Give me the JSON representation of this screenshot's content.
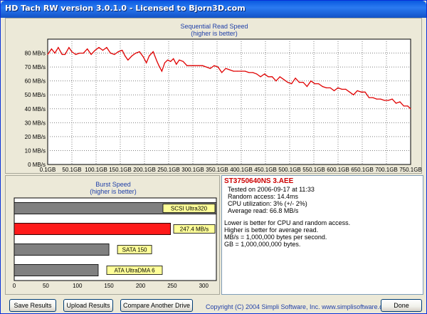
{
  "window": {
    "title": "HD Tach RW version 3.0.1.0 - Licensed to Bjorn3D.com"
  },
  "sequential": {
    "title_line1": "Sequential Read Speed",
    "title_line2": "(higher is better)"
  },
  "burst": {
    "title_line1": "Burst Speed",
    "title_line2": "(higher is better)"
  },
  "info": {
    "drive_name": "ST3750640NS 3.AEE",
    "tested_on": "Tested on 2006-09-17 at 11:33",
    "random_access": "Random access: 14.4ms",
    "cpu_utilization": "CPU utilization: 3% (+/- 2%)",
    "average_read": "Average read: 66.8 MB/s",
    "note1": "Lower is better for CPU and random access.",
    "note2": "Higher is better for average read.",
    "note3": "MB/s = 1,000,000 bytes per second.",
    "note4": "GB = 1,000,000,000 bytes."
  },
  "buttons": {
    "save": "Save Results",
    "upload": "Upload Results",
    "compare": "Compare Another Drive",
    "done": "Done"
  },
  "footer": {
    "copyright": "Copyright (C) 2004 Simpli Software, Inc. www.simplisoftware.com"
  },
  "colors": {
    "line": "#e00000",
    "highlight_bar": "#ff1a1a",
    "reference_bar": "#808080",
    "label_bg": "#ffff99",
    "title_blue": "#1f3fa8",
    "drive_name_red": "#cc0000"
  },
  "chart_data": [
    {
      "type": "line",
      "title": "Sequential Read Speed",
      "subtitle": "(higher is better)",
      "xlabels": [
        "0.1GB",
        "50.1GB",
        "100.1GB",
        "150.1GB",
        "200.1GB",
        "250.1GB",
        "300.1GB",
        "350.1GB",
        "400.1GB",
        "450.1GB",
        "500.1GB",
        "550.1GB",
        "600.1GB",
        "650.1GB",
        "700.1GB",
        "750.1GB"
      ],
      "yticks": [
        "0 MB/s",
        "10 MB/s",
        "20 MB/s",
        "30 MB/s",
        "40 MB/s",
        "50 MB/s",
        "60 MB/s",
        "70 MB/s",
        "80 MB/s"
      ],
      "ylim": [
        0,
        90
      ],
      "xlim": [
        0.1,
        750.1
      ],
      "grid": true,
      "series": [
        {
          "x": [
            0.1,
            8,
            15,
            22,
            30,
            36,
            44,
            50,
            58,
            66,
            74,
            82,
            90,
            98,
            106,
            114,
            122,
            130,
            138,
            146,
            154,
            160,
            166,
            174,
            182,
            190,
            198,
            204,
            210,
            218,
            226,
            230,
            236,
            242,
            248,
            254,
            260,
            266,
            272,
            280,
            288,
            296,
            304,
            312,
            320,
            328,
            336,
            344,
            352,
            360,
            368,
            376,
            384,
            392,
            400,
            408,
            416,
            424,
            432,
            440,
            448,
            456,
            464,
            472,
            480,
            488,
            496,
            504,
            512,
            520,
            528,
            536,
            544,
            552,
            560,
            568,
            576,
            584,
            592,
            600,
            608,
            616,
            624,
            632,
            640,
            648,
            656,
            664,
            672,
            680,
            688,
            696,
            704,
            712,
            720,
            728,
            736,
            744,
            750
          ],
          "y": [
            79,
            83,
            80,
            84,
            79,
            79,
            84,
            81,
            79,
            80,
            80,
            83,
            79,
            82,
            84,
            82,
            84,
            80,
            79,
            81,
            82,
            78,
            75,
            78,
            80,
            81,
            77,
            73,
            78,
            81,
            74,
            71,
            67,
            73,
            75,
            74,
            76,
            72,
            75,
            74,
            71,
            71,
            71,
            71,
            71,
            70,
            69,
            71,
            70,
            66,
            69,
            68,
            67,
            67,
            67,
            67,
            66,
            66,
            65,
            63,
            65,
            63,
            63,
            60,
            63,
            61,
            59,
            58,
            62,
            59,
            59,
            56,
            60,
            58,
            58,
            56,
            55,
            55,
            53,
            55,
            54,
            54,
            52,
            50,
            53,
            52,
            52,
            48,
            48,
            47,
            47,
            46,
            46,
            47,
            44,
            45,
            42,
            42,
            40
          ]
        }
      ]
    },
    {
      "type": "bar",
      "title": "Burst Speed",
      "subtitle": "(higher is better)",
      "orientation": "horizontal",
      "xticks": [
        "0",
        "50",
        "100",
        "150",
        "200",
        "250",
        "300"
      ],
      "xlim": [
        0,
        320
      ],
      "categories": [
        "SCSI Ultra320",
        "247.4 MB/s",
        "SATA 150",
        "ATA UltraDMA 6"
      ],
      "values": [
        320,
        247.4,
        150,
        133
      ],
      "highlight_index": 1
    }
  ]
}
